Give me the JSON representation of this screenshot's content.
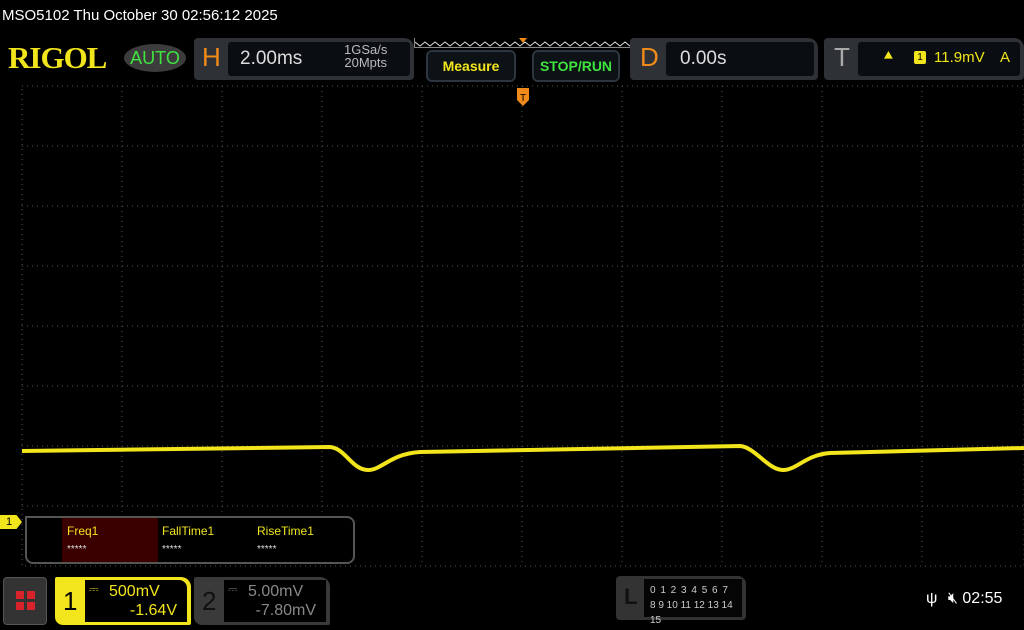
{
  "title": "MSO5102  Thu October 30 02:56:12 2025",
  "brand": {
    "logo": "RIGOL",
    "mode": "AUTO"
  },
  "horizontal": {
    "label": "H",
    "timebase": "2.00ms",
    "sample_rate": "1GSa/s",
    "memory_depth": "20Mpts"
  },
  "buttons": {
    "measure": "Measure",
    "stop_run": "STOP/RUN"
  },
  "delay": {
    "label": "D",
    "value": "0.00s"
  },
  "trigger": {
    "label": "T",
    "edge_icon": "rising-edge-icon",
    "source": "1",
    "level": "11.9mV",
    "mode": "A"
  },
  "channel1_marker": "1",
  "measurements": [
    {
      "name": "Freq1",
      "value": "*****"
    },
    {
      "name": "FallTime1",
      "value": "*****"
    },
    {
      "name": "RiseTime1",
      "value": "*****"
    }
  ],
  "channels": [
    {
      "number": "1",
      "coupling_icon": "dc-coupling-icon",
      "scale": "500mV",
      "offset": "-1.64V",
      "color": "#f2e51c"
    },
    {
      "number": "2",
      "coupling_icon": "dc-coupling-icon",
      "scale": "5.00mV",
      "offset": "-7.80mV",
      "color": "#888888"
    }
  ],
  "logic": {
    "label": "L",
    "row1": "0 1 2 3  4 5 6 7",
    "row2": "8 9 10 11 12 13 14 15"
  },
  "status": {
    "usb_icon": "usb-icon",
    "mute_icon": "speaker-muted-icon",
    "time": "02:55"
  },
  "colors": {
    "trace": "#f2e51c",
    "accent": "#f08a1a",
    "green": "#3fe43f"
  }
}
